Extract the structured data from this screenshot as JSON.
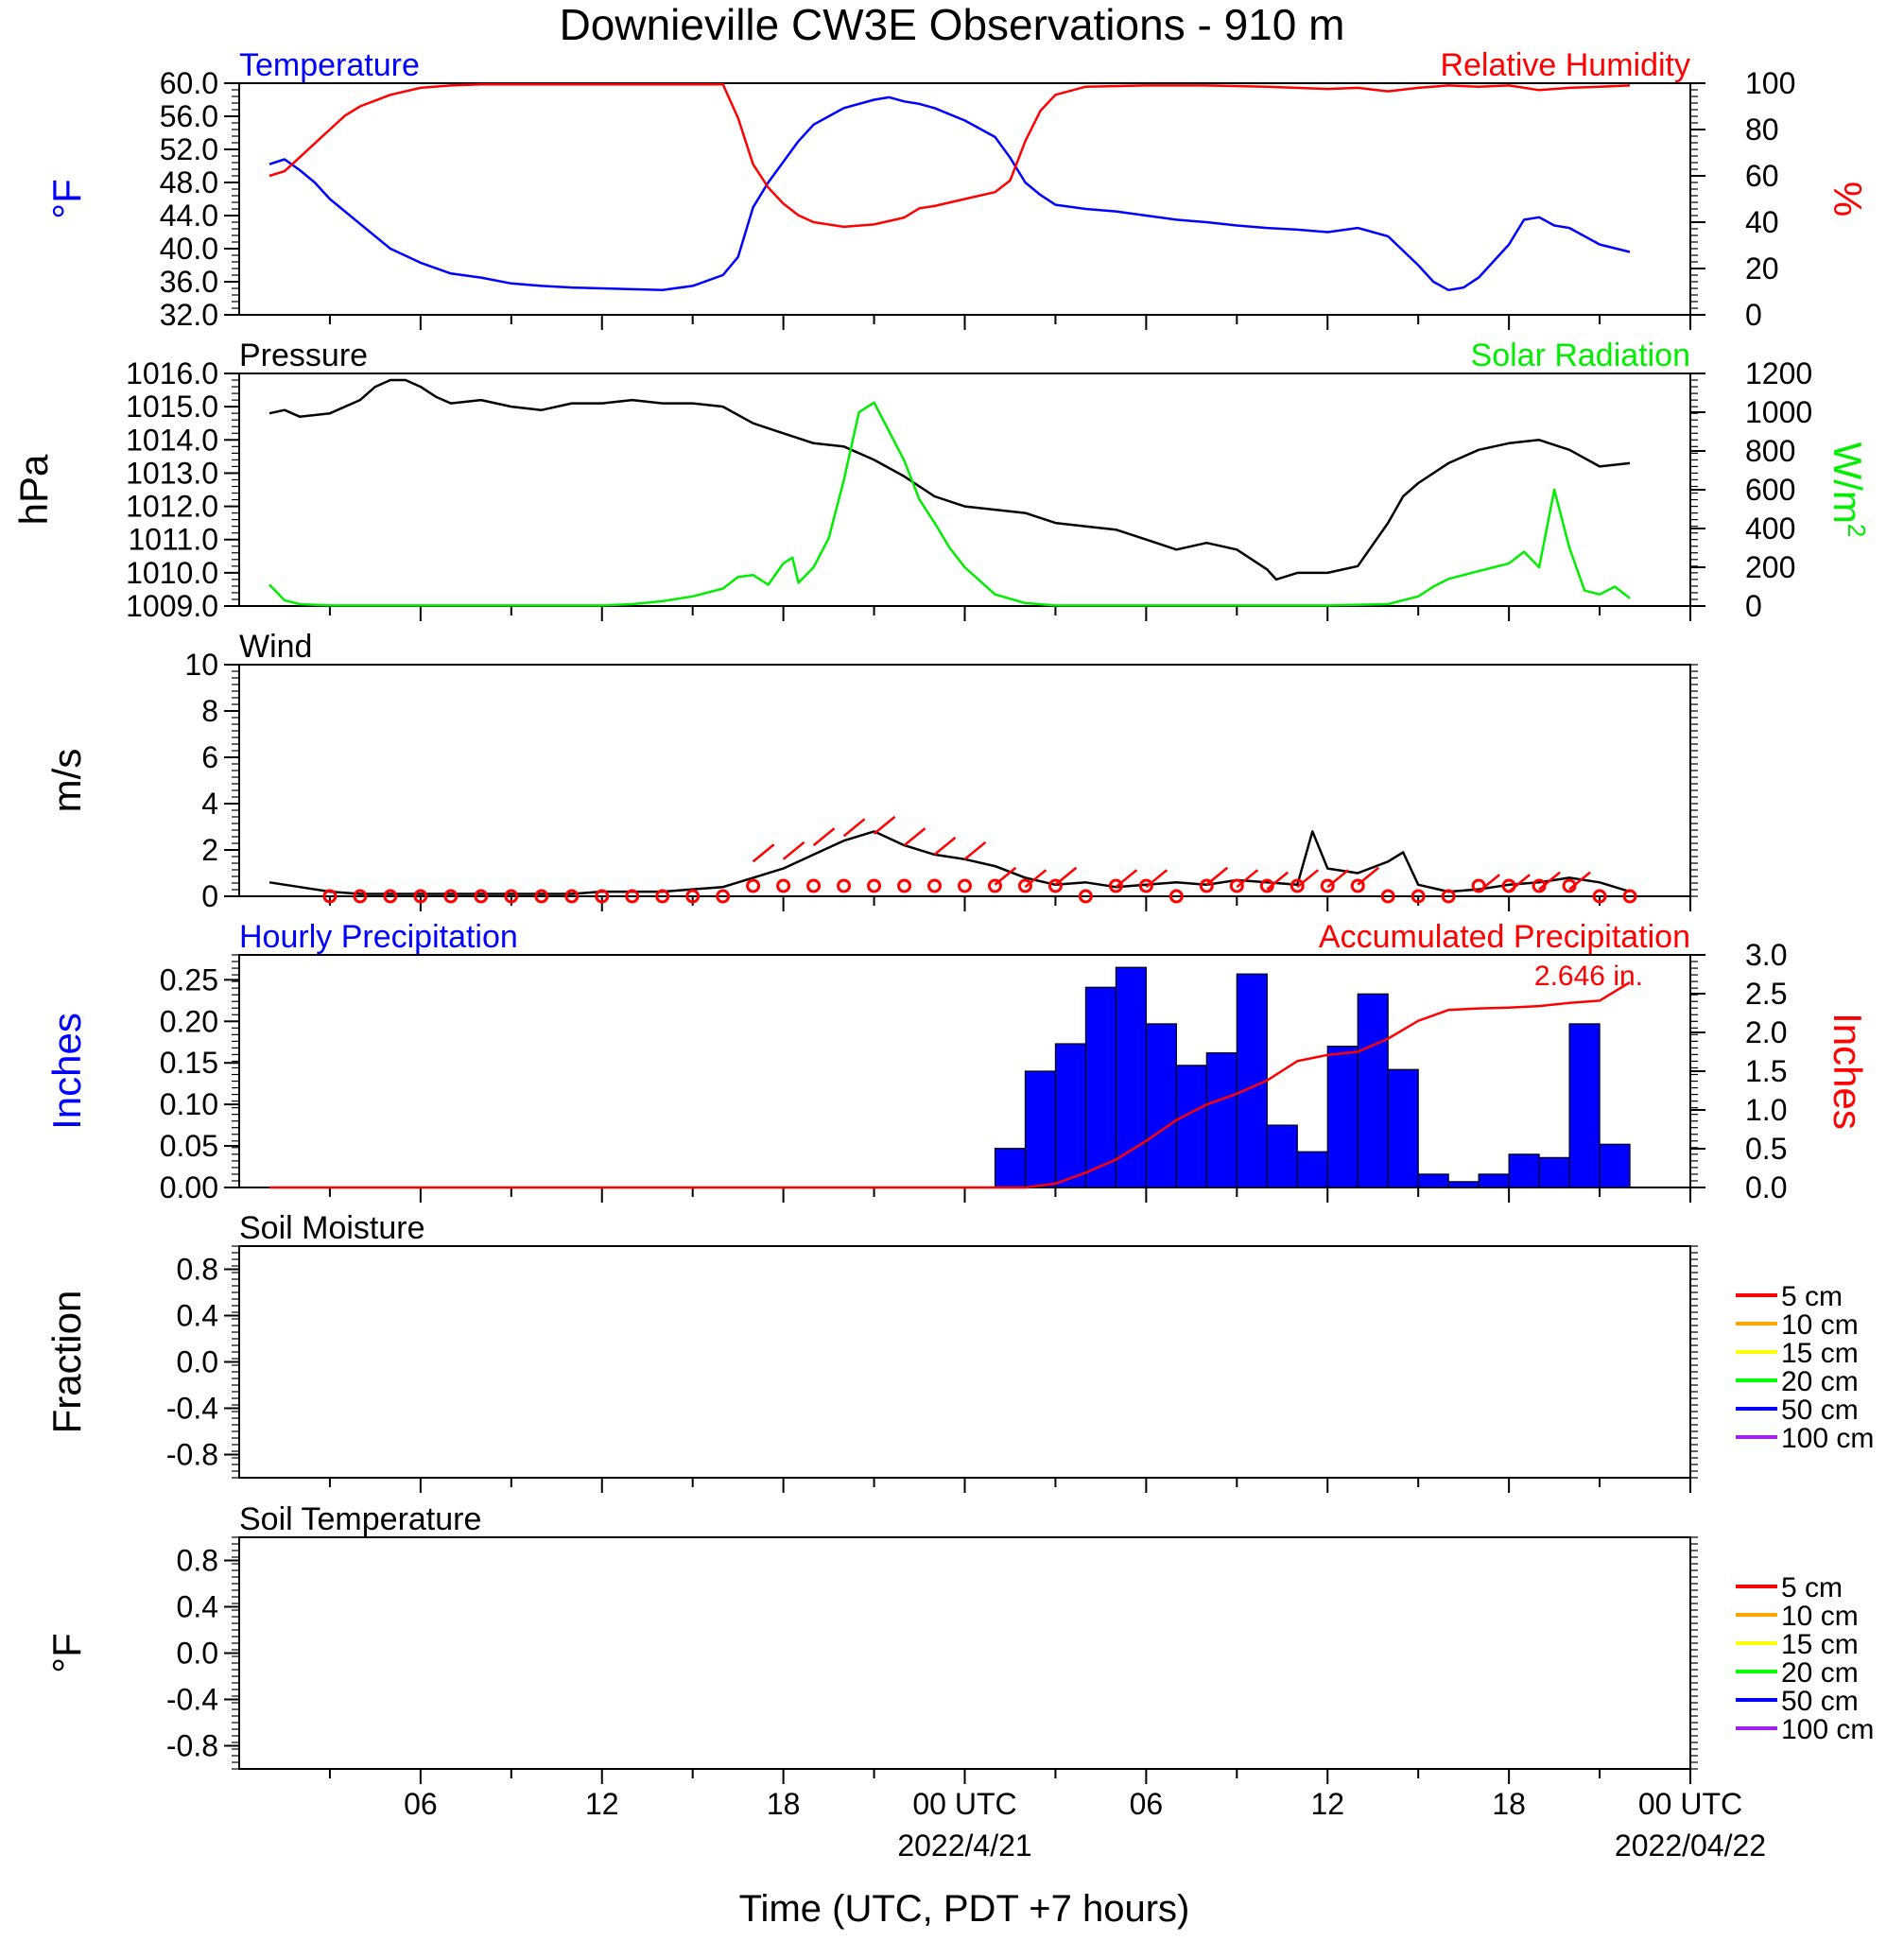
{
  "title": "Downieville CW3E Observations - 910 m",
  "x_axis": {
    "label": "Time (UTC, PDT +7 hours)",
    "tick_labels": [
      {
        "hour": 6,
        "text": "06"
      },
      {
        "hour": 12,
        "text": "12"
      },
      {
        "hour": 18,
        "text": "18"
      },
      {
        "hour": 24,
        "text": "00 UTC",
        "date": "2022/4/21"
      },
      {
        "hour": 30,
        "text": "06"
      },
      {
        "hour": 36,
        "text": "12"
      },
      {
        "hour": 42,
        "text": "18"
      },
      {
        "hour": 48,
        "text": "00 UTC",
        "date": "2022/04/22"
      }
    ],
    "range_hours": [
      1,
      48
    ]
  },
  "chart_data": [
    {
      "type": "line",
      "left_label": "Temperature",
      "right_label": "Relative Humidity",
      "ylabel_left": "°F",
      "ylabel_right": "%",
      "ylim_left": [
        32,
        60
      ],
      "ylim_right": [
        0,
        100
      ],
      "yticks_left": [
        "60.0",
        "56.0",
        "52.0",
        "48.0",
        "44.0",
        "40.0",
        "36.0",
        "32.0"
      ],
      "yticks_right": [
        "100",
        "80",
        "60",
        "40",
        "20",
        "0"
      ],
      "colors": {
        "left": "#0000ff",
        "right": "#ff0000"
      },
      "series": [
        {
          "axis": "left",
          "x": [
            1,
            1.5,
            2,
            2.5,
            3,
            3.5,
            4,
            5,
            6,
            7,
            8,
            9,
            10,
            11,
            12,
            13,
            14,
            15,
            16,
            16.5,
            17,
            17.5,
            18,
            18.5,
            19,
            20,
            21,
            21.5,
            22,
            22.5,
            23,
            24,
            25,
            25.5,
            26,
            26.5,
            27,
            28,
            29,
            30,
            31,
            32,
            33,
            34,
            35,
            36,
            37,
            37.5,
            38,
            39,
            39.5,
            40,
            40.5,
            41,
            42,
            42.5,
            43,
            43.5,
            44,
            45,
            46
          ],
          "values": [
            50.2,
            50.8,
            49.5,
            48,
            46,
            44.5,
            43,
            40,
            38.3,
            37,
            36.5,
            35.8,
            35.5,
            35.3,
            35.2,
            35.1,
            35.0,
            35.5,
            36.8,
            39,
            45,
            48,
            50.5,
            53,
            55,
            57,
            58,
            58.3,
            57.8,
            57.5,
            57,
            55.5,
            53.5,
            51,
            48,
            46.5,
            45.3,
            44.8,
            44.5,
            44.0,
            43.5,
            43.2,
            42.8,
            42.5,
            42.3,
            42.0,
            42.5,
            42.0,
            41.5,
            38,
            36,
            35,
            35.3,
            36.5,
            40.5,
            43.5,
            43.8,
            42.8,
            42.5,
            40.5,
            39.6
          ]
        },
        {
          "axis": "right",
          "x": [
            1,
            1.5,
            2,
            2.5,
            3,
            3.5,
            4,
            5,
            6,
            7,
            8,
            9,
            10,
            12,
            14,
            16,
            16.5,
            17,
            17.5,
            18,
            18.5,
            19,
            20,
            21,
            22,
            22.5,
            23,
            24,
            25,
            25.5,
            26,
            26.5,
            27,
            28,
            30,
            32,
            34,
            36,
            37,
            38,
            39,
            40,
            41,
            42,
            43,
            44,
            45,
            46
          ],
          "values": [
            60,
            62,
            68,
            74,
            80,
            86,
            90,
            95,
            98,
            99,
            99.5,
            99.5,
            99.5,
            99.5,
            99.5,
            99.5,
            85,
            65,
            55,
            48,
            43,
            40,
            38,
            39,
            42,
            46,
            47,
            50,
            53,
            58,
            75,
            88,
            95,
            98.5,
            99,
            99,
            98.5,
            97.5,
            98,
            96.5,
            98,
            99,
            98.5,
            99,
            97,
            98,
            98.5,
            99
          ]
        }
      ]
    },
    {
      "type": "line",
      "left_label": "Pressure",
      "right_label": "Solar Radiation",
      "ylabel_left": "hPa",
      "ylabel_right": "W/m",
      "ylabel_right_sup": "2",
      "ylim_left": [
        1009,
        1016
      ],
      "ylim_right": [
        0,
        1200
      ],
      "yticks_left": [
        "1016.0",
        "1015.0",
        "1014.0",
        "1013.0",
        "1012.0",
        "1011.0",
        "1010.0",
        "1009.0"
      ],
      "yticks_right": [
        "1200",
        "1000",
        "800",
        "600",
        "400",
        "200",
        "0"
      ],
      "colors": {
        "left": "#000000",
        "right": "#00ee00"
      },
      "series": [
        {
          "axis": "left",
          "x": [
            1,
            1.5,
            2,
            3,
            4,
            4.5,
            5,
            5.5,
            6,
            6.5,
            7,
            8,
            9,
            10,
            11,
            12,
            13,
            14,
            15,
            16,
            17,
            18,
            19,
            20,
            21,
            22,
            23,
            24,
            25,
            26,
            27,
            28,
            29,
            30,
            31,
            32,
            33,
            34,
            34.3,
            35,
            36,
            37,
            38,
            38.5,
            39,
            40,
            41,
            42,
            43,
            44,
            45,
            46
          ],
          "values": [
            1014.8,
            1014.9,
            1014.7,
            1014.8,
            1015.2,
            1015.6,
            1015.8,
            1015.8,
            1015.6,
            1015.3,
            1015.1,
            1015.2,
            1015.0,
            1014.9,
            1015.1,
            1015.1,
            1015.2,
            1015.1,
            1015.1,
            1015.0,
            1014.5,
            1014.2,
            1013.9,
            1013.8,
            1013.4,
            1012.9,
            1012.3,
            1012.0,
            1011.9,
            1011.8,
            1011.5,
            1011.4,
            1011.3,
            1011.0,
            1010.7,
            1010.9,
            1010.7,
            1010.1,
            1009.8,
            1010.0,
            1010.0,
            1010.2,
            1011.5,
            1012.3,
            1012.7,
            1013.3,
            1013.7,
            1013.9,
            1014.0,
            1013.7,
            1013.2,
            1013.3
          ]
        },
        {
          "axis": "right",
          "x": [
            1,
            1.5,
            2,
            3,
            12,
            13,
            14,
            15,
            16,
            16.5,
            17,
            17.5,
            18,
            18.3,
            18.5,
            19,
            19.5,
            20,
            20.5,
            21,
            21.5,
            22,
            22.5,
            23,
            23.5,
            24,
            25,
            26,
            27,
            36,
            38,
            39,
            39.5,
            40,
            40.5,
            41,
            41.5,
            42,
            42.5,
            43,
            43.5,
            44,
            44.5,
            45,
            45.5,
            46
          ],
          "values": [
            110,
            30,
            10,
            3,
            3,
            10,
            25,
            50,
            90,
            150,
            160,
            110,
            220,
            250,
            120,
            200,
            350,
            650,
            1000,
            1050,
            900,
            750,
            550,
            430,
            300,
            200,
            60,
            15,
            3,
            3,
            10,
            50,
            100,
            140,
            160,
            180,
            200,
            220,
            280,
            200,
            600,
            300,
            80,
            60,
            100,
            40
          ]
        }
      ]
    },
    {
      "type": "line",
      "left_label": "Wind",
      "ylabel_left": "m/s",
      "ylim_left": [
        0,
        10
      ],
      "yticks_left": [
        "10",
        "8",
        "6",
        "4",
        "2",
        "0"
      ],
      "colors": {
        "line": "#000000",
        "barb": "#ff0000"
      },
      "series": [
        {
          "axis": "left",
          "x": [
            1,
            2,
            3,
            4,
            5,
            6,
            7,
            8,
            9,
            10,
            11,
            12,
            13,
            14,
            15,
            16,
            17,
            18,
            19,
            20,
            21,
            22,
            23,
            24,
            25,
            26,
            27,
            28,
            29,
            30,
            31,
            32,
            33,
            34,
            35,
            35.5,
            36,
            37,
            38,
            38.5,
            39,
            40,
            41,
            42,
            43,
            44,
            45,
            46
          ],
          "values": [
            0.6,
            0.4,
            0.2,
            0.1,
            0.1,
            0.1,
            0.1,
            0.1,
            0.1,
            0.1,
            0.1,
            0.2,
            0.2,
            0.2,
            0.3,
            0.4,
            0.8,
            1.2,
            1.8,
            2.4,
            2.8,
            2.2,
            1.8,
            1.6,
            1.3,
            0.8,
            0.5,
            0.6,
            0.4,
            0.5,
            0.6,
            0.5,
            0.7,
            0.6,
            0.5,
            2.8,
            1.2,
            1.0,
            1.5,
            1.9,
            0.5,
            0.2,
            0.3,
            0.5,
            0.6,
            0.8,
            0.6,
            0.2
          ]
        }
      ],
      "barb_hours": [
        3,
        4,
        5,
        6,
        7,
        8,
        9,
        10,
        11,
        12,
        13,
        14,
        15,
        16,
        17,
        18,
        19,
        20,
        21,
        22,
        23,
        24,
        25,
        26,
        27,
        28,
        29,
        30,
        31,
        32,
        33,
        34,
        35,
        36,
        37,
        38,
        39,
        40,
        41,
        42,
        43,
        44,
        45,
        46
      ],
      "barb_speeds": [
        0,
        0,
        0,
        0,
        0,
        0,
        0,
        0,
        0,
        0,
        0,
        0,
        0,
        0,
        1.5,
        1.6,
        2.2,
        2.6,
        2.7,
        2.2,
        1.8,
        1.6,
        0.5,
        0.4,
        0.5,
        0.0,
        0.4,
        0.4,
        0.0,
        0.5,
        0.4,
        0.3,
        0.4,
        0.4,
        0.5,
        0.0,
        0.0,
        0.0,
        0.2,
        0.2,
        0.3,
        0.3,
        0.0,
        0.0
      ]
    },
    {
      "type": "bar",
      "left_label": "Hourly Precipitation",
      "right_label": "Accumulated Precipitation",
      "annotation": "2.646 in.",
      "ylabel_left": "Inches",
      "ylabel_right": "Inches",
      "ylim_left": [
        0,
        0.28
      ],
      "ylim_right": [
        0,
        3.0
      ],
      "yticks_left": [
        "0.25",
        "0.20",
        "0.15",
        "0.10",
        "0.05",
        "0.00"
      ],
      "yticks_right": [
        "3.0",
        "2.5",
        "2.0",
        "1.5",
        "1.0",
        "0.5",
        "0.0"
      ],
      "colors": {
        "bars": "#0000ff",
        "accum": "#ff0000"
      },
      "bar_hours": [
        26,
        27,
        28,
        29,
        30,
        31,
        32,
        33,
        34,
        35,
        36,
        37,
        38,
        39,
        40,
        41,
        42,
        43,
        44,
        45,
        46
      ],
      "bar_values": [
        0.047,
        0.14,
        0.173,
        0.241,
        0.265,
        0.197,
        0.147,
        0.162,
        0.257,
        0.075,
        0.043,
        0.17,
        0.233,
        0.142,
        0.016,
        0.007,
        0.016,
        0.04,
        0.036,
        0.197,
        0.052
      ],
      "accum_x": [
        1,
        26,
        27,
        28,
        29,
        30,
        31,
        32,
        33,
        34,
        35,
        36,
        37,
        38,
        39,
        40,
        41,
        42,
        43,
        44,
        45,
        46
      ],
      "accum_values": [
        0,
        0,
        0.05,
        0.19,
        0.36,
        0.6,
        0.87,
        1.07,
        1.21,
        1.38,
        1.63,
        1.71,
        1.75,
        1.92,
        2.15,
        2.29,
        2.31,
        2.32,
        2.34,
        2.38,
        2.41,
        2.646
      ]
    },
    {
      "type": "line",
      "left_label": "Soil Moisture",
      "ylabel_left": "Fraction",
      "ylim_left": [
        -1,
        1
      ],
      "yticks_left": [
        "0.8",
        "0.4",
        "0.0",
        "-0.4",
        "-0.8"
      ],
      "legend": [
        {
          "name": "5 cm",
          "color": "#ff0000"
        },
        {
          "name": "10 cm",
          "color": "#ffa500"
        },
        {
          "name": "15 cm",
          "color": "#ffff00"
        },
        {
          "name": "20 cm",
          "color": "#00ff00"
        },
        {
          "name": "50 cm",
          "color": "#0000ff"
        },
        {
          "name": "100 cm",
          "color": "#a020f0"
        }
      ],
      "series": []
    },
    {
      "type": "line",
      "left_label": "Soil Temperature",
      "ylabel_left": "°F",
      "ylim_left": [
        -1,
        1
      ],
      "yticks_left": [
        "0.8",
        "0.4",
        "0.0",
        "-0.4",
        "-0.8"
      ],
      "legend": [
        {
          "name": "5 cm",
          "color": "#ff0000"
        },
        {
          "name": "10 cm",
          "color": "#ffa500"
        },
        {
          "name": "15 cm",
          "color": "#ffff00"
        },
        {
          "name": "20 cm",
          "color": "#00ff00"
        },
        {
          "name": "50 cm",
          "color": "#0000ff"
        },
        {
          "name": "100 cm",
          "color": "#a020f0"
        }
      ],
      "series": []
    }
  ]
}
